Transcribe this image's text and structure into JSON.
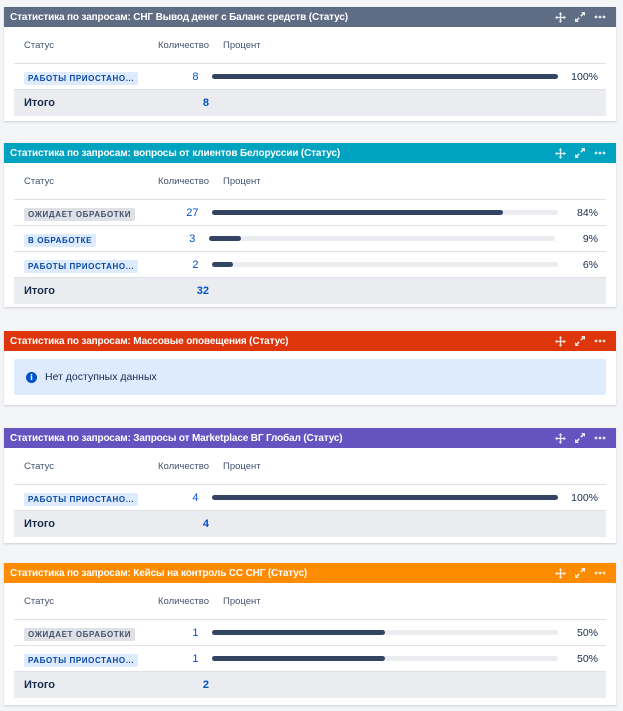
{
  "colors": {
    "gadget1": "#5e6c84",
    "gadget2": "#00a3bf",
    "gadget3": "#de350b",
    "gadget4": "#6554c0",
    "gadget5": "#ff8b00"
  },
  "columns": {
    "status": "Статус",
    "count": "Количество",
    "percent": "Процент"
  },
  "total_label": "Итого",
  "gadgets": [
    {
      "title": "Статистика по запросам: СНГ Вывод денег с Баланс средств (Статус)",
      "rows": [
        {
          "status": "РАБОТЫ ПРИОСТАНО...",
          "count": "8",
          "percent": "100%",
          "fraction": 1.0
        }
      ],
      "total": "8"
    },
    {
      "title": "Статистика по запросам: вопросы от клиентов Белоруссии (Статус)",
      "rows": [
        {
          "status": "ОЖИДАЕТ ОБРАБОТКИ",
          "count": "27",
          "percent": "84%",
          "fraction": 0.84
        },
        {
          "status": "В ОБРАБОТКЕ",
          "count": "3",
          "percent": "9%",
          "fraction": 0.09
        },
        {
          "status": "РАБОТЫ ПРИОСТАНО...",
          "count": "2",
          "percent": "6%",
          "fraction": 0.06
        }
      ],
      "total": "32"
    },
    {
      "title": "Статистика по запросам: Массовые оповещения (Статус)",
      "empty_message": "Нет доступных данных"
    },
    {
      "title": "Статистика по запросам: Запросы от Marketplace ВГ Глобал (Статус)",
      "rows": [
        {
          "status": "РАБОТЫ ПРИОСТАНО...",
          "count": "4",
          "percent": "100%",
          "fraction": 1.0
        }
      ],
      "total": "4"
    },
    {
      "title": "Статистика по запросам: Кейсы на контроль СС СНГ (Статус)",
      "rows": [
        {
          "status": "ОЖИДАЕТ ОБРАБОТКИ",
          "count": "1",
          "percent": "50%",
          "fraction": 0.5
        },
        {
          "status": "РАБОТЫ ПРИОСТАНО...",
          "count": "1",
          "percent": "50%",
          "fraction": 0.5
        }
      ],
      "total": "2"
    }
  ],
  "icons": {
    "move": "move-icon",
    "expand": "expand-icon",
    "more": "more-icon",
    "info": "info-icon"
  }
}
